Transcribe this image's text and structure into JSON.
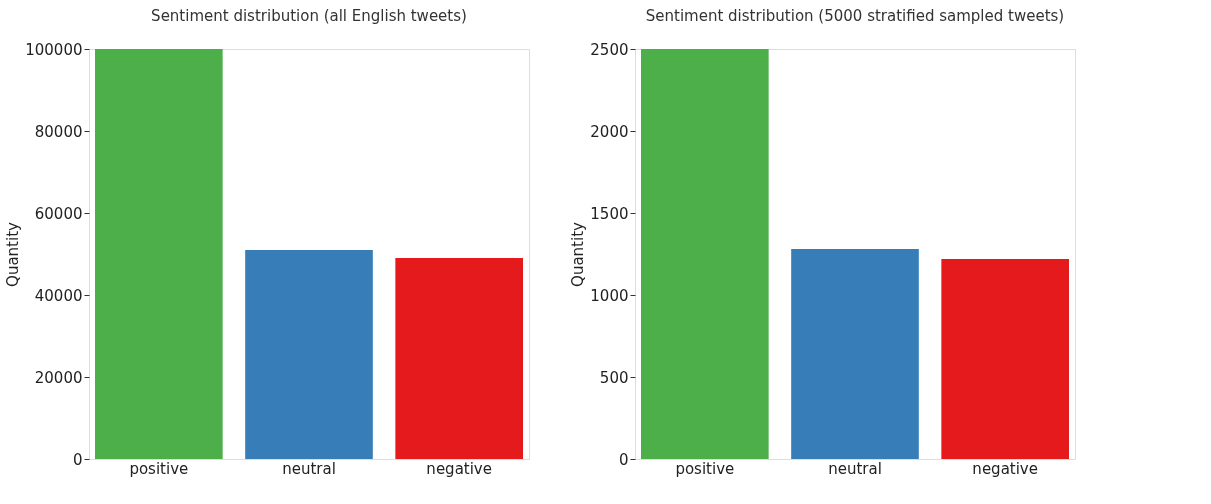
{
  "chart_data": [
    {
      "type": "bar",
      "title": "Sentiment distribution (all English tweets)",
      "ylabel": "Quantity",
      "categories": [
        "positive",
        "neutral",
        "negative"
      ],
      "values": [
        100000,
        51000,
        49000
      ],
      "colors": [
        "#4daf4a",
        "#377eb8",
        "#e41a1c"
      ],
      "ylim": [
        0,
        100000
      ],
      "yticks": [
        0,
        20000,
        40000,
        60000,
        80000,
        100000
      ],
      "grid": false
    },
    {
      "type": "bar",
      "title": "Sentiment distribution (5000 stratified sampled tweets)",
      "ylabel": "Quantity",
      "categories": [
        "positive",
        "neutral",
        "negative"
      ],
      "values": [
        2500,
        1280,
        1220
      ],
      "colors": [
        "#4daf4a",
        "#377eb8",
        "#e41a1c"
      ],
      "ylim": [
        0,
        2500
      ],
      "yticks": [
        0,
        500,
        1000,
        1500,
        2000,
        2500
      ],
      "grid": false
    }
  ]
}
